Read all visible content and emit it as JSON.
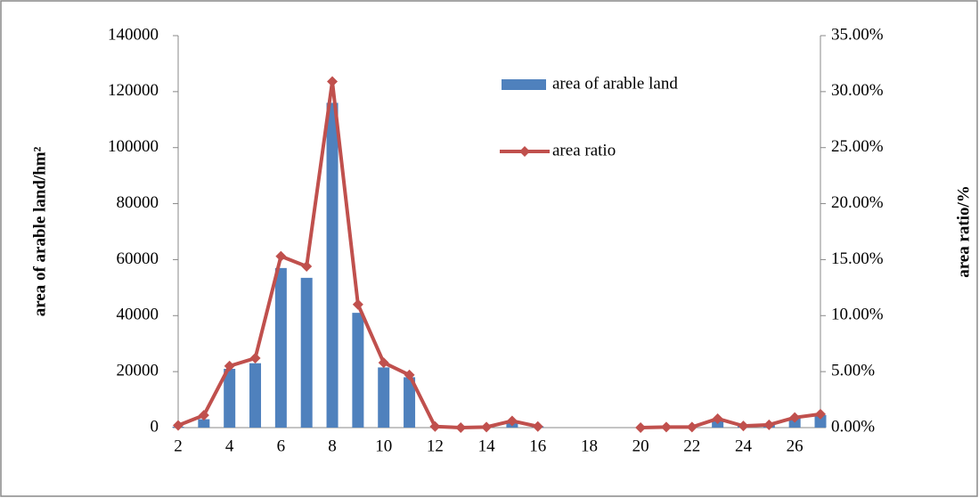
{
  "chart_data": {
    "type": "bar",
    "categories": [
      2,
      null,
      4,
      null,
      6,
      null,
      8,
      null,
      10,
      null,
      12,
      null,
      14,
      null,
      16,
      null,
      18,
      null,
      20,
      null,
      22,
      null,
      24,
      null,
      26,
      null
    ],
    "series": [
      {
        "name": "area of arable land",
        "type": "bar",
        "color": "#4f81bd",
        "values": [
          300,
          3000,
          21000,
          23000,
          57000,
          53500,
          116000,
          41000,
          21500,
          18000,
          0,
          0,
          0,
          2000,
          500,
          null,
          null,
          null,
          0,
          0,
          0,
          3000,
          500,
          1000,
          3500,
          4500
        ]
      },
      {
        "name": "area ratio",
        "type": "line",
        "axis": "y2",
        "color": "#c0504d",
        "values": [
          0.2,
          1.1,
          5.5,
          6.2,
          15.3,
          14.4,
          30.9,
          11.0,
          5.8,
          4.7,
          0.1,
          0,
          0.05,
          0.6,
          0.1,
          null,
          null,
          null,
          0,
          0.05,
          0.05,
          0.8,
          0.15,
          0.25,
          0.9,
          1.2
        ]
      }
    ],
    "y_label": "area of arable land/hm²",
    "y2_label": "area ratio/%",
    "ylim": [
      0,
      140000
    ],
    "yticks": [
      0,
      20000,
      40000,
      60000,
      80000,
      100000,
      120000,
      140000
    ],
    "y2lim": [
      0,
      35
    ],
    "y2ticks": [
      {
        "value": 0,
        "label": "0.00%"
      },
      {
        "value": 5,
        "label": "5.00%"
      },
      {
        "value": 10,
        "label": "10.00%"
      },
      {
        "value": 15,
        "label": "15.00%"
      },
      {
        "value": 20,
        "label": "20.00%"
      },
      {
        "value": 25,
        "label": "25.00%"
      },
      {
        "value": 30,
        "label": "30.00%"
      },
      {
        "value": 35,
        "label": "35.00%"
      }
    ]
  }
}
